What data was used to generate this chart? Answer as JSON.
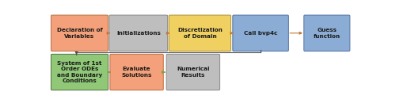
{
  "top_row": [
    {
      "label": "Declaration of\nVariables",
      "color": "#F4A07A",
      "edgecolor": "#B87040"
    },
    {
      "label": "Initializations",
      "color": "#BEBEBE",
      "edgecolor": "#888888"
    },
    {
      "label": "Discretization\nof Domain",
      "color": "#F0D060",
      "edgecolor": "#B09030"
    },
    {
      "label": "Call bvp4c",
      "color": "#8BACD4",
      "edgecolor": "#5070A0"
    },
    {
      "label": "Guess\nfunction",
      "color": "#8BACD4",
      "edgecolor": "#5070A0"
    }
  ],
  "bottom_row": [
    {
      "label": "System of 1st\nOrder ODEs\nand Boundary\nConditions",
      "color": "#90C878",
      "edgecolor": "#507040"
    },
    {
      "label": "Evaluate\nSolutions",
      "color": "#F4A07A",
      "edgecolor": "#B87040"
    },
    {
      "label": "Numerical\nResults",
      "color": "#BEBEBE",
      "edgecolor": "#888888"
    }
  ],
  "top_arrow_color": "#C07838",
  "bottom_arrow_color": "#80A050",
  "connect_line_color": "#505050",
  "bg_color": "#FFFFFF",
  "fontsize": 5.2,
  "fontcolor": "#1A1A1A"
}
